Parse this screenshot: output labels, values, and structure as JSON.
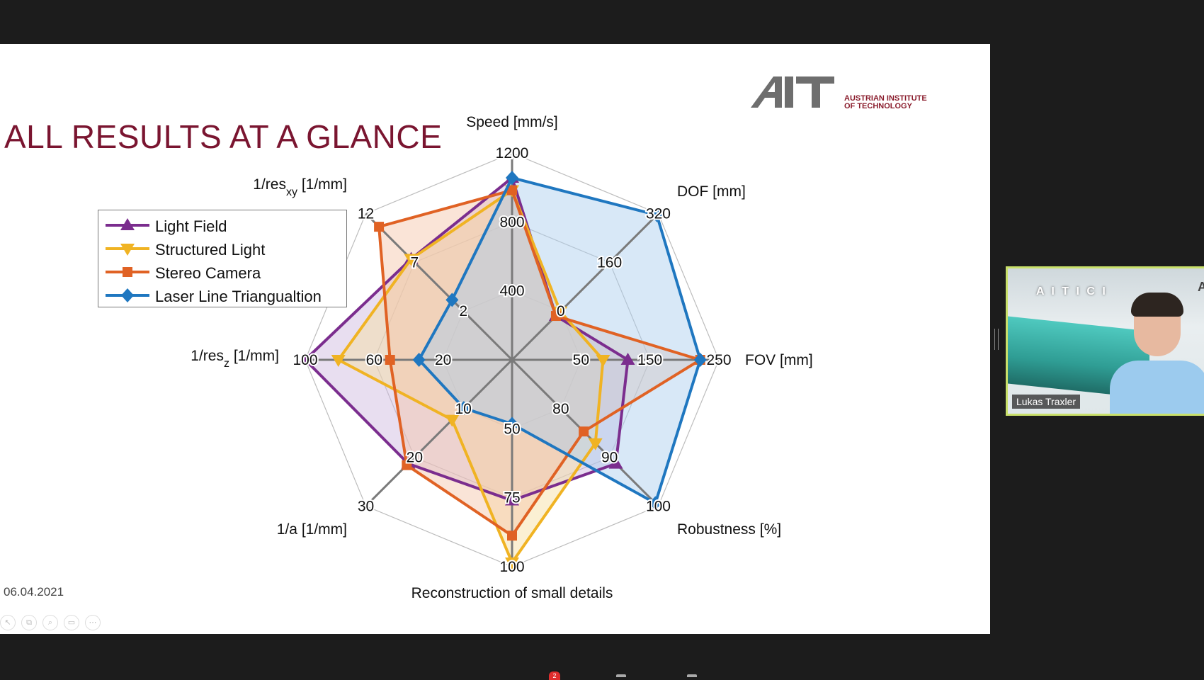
{
  "slide": {
    "title": "ALL RESULTS AT A GLANCE",
    "date": "06.04.2021",
    "logo": {
      "mark": "AIT",
      "line1": "AUSTRIAN INSTITUTE",
      "line2": "OF TECHNOLOGY"
    }
  },
  "chart_data": {
    "type": "radar",
    "axes": [
      {
        "label": "Speed [mm/s]",
        "ticks": [
          "400",
          "800",
          "1200"
        ]
      },
      {
        "label": "DOF [mm]",
        "ticks": [
          "0",
          "160",
          "320"
        ]
      },
      {
        "label": "FOV [mm]",
        "ticks": [
          "50",
          "150",
          "250"
        ]
      },
      {
        "label": "Robustness [%]",
        "ticks": [
          "80",
          "90",
          "100"
        ]
      },
      {
        "label": "Reconstruction of small details",
        "ticks": [
          "50",
          "75",
          "100"
        ]
      },
      {
        "label": "1/a [1/mm]",
        "ticks": [
          "10",
          "20",
          "30"
        ]
      },
      {
        "label_main": "1/res",
        "label_sub": "z",
        "label_unit": " [1/mm]",
        "ticks": [
          "20",
          "60",
          "100"
        ]
      },
      {
        "label_main": "1/res",
        "label_sub": "xy",
        "label_unit": " [1/mm]",
        "ticks": [
          "2",
          "7",
          "12"
        ]
      }
    ],
    "series": [
      {
        "name": "Light Field",
        "color": "#7b2d8e",
        "marker": "triangle-up",
        "fill": "#cdb6dd",
        "values": [
          0.88,
          0.3,
          0.56,
          0.71,
          0.68,
          0.71,
          1.0,
          0.69
        ]
      },
      {
        "name": "Structured Light",
        "color": "#f0b323",
        "marker": "triangle-down",
        "fill": "#f6dd9d",
        "values": [
          0.82,
          0.33,
          0.44,
          0.57,
          0.98,
          0.41,
          0.84,
          0.69
        ]
      },
      {
        "name": "Stereo Camera",
        "color": "#e06224",
        "marker": "square",
        "fill": "#f3c3a6",
        "values": [
          0.82,
          0.3,
          0.91,
          0.49,
          0.85,
          0.72,
          0.59,
          0.91
        ]
      },
      {
        "name": "Laser Line Triangualtion",
        "color": "#1f77c0",
        "marker": "diamond",
        "fill": "#a9cdee",
        "values": [
          0.88,
          0.99,
          0.91,
          0.98,
          0.31,
          0.33,
          0.45,
          0.41
        ]
      }
    ],
    "legend_placement": "left",
    "grid": true
  },
  "video": {
    "participant_name": "Lukas Traxler",
    "badge_text": "A I T  I C I",
    "corner_text": "AI"
  },
  "toolbar": {
    "badge_count": "2"
  },
  "icons": [
    "cursor-arrow-icon",
    "copy-icon",
    "zoom-icon",
    "screen-icon",
    "more-icon"
  ]
}
